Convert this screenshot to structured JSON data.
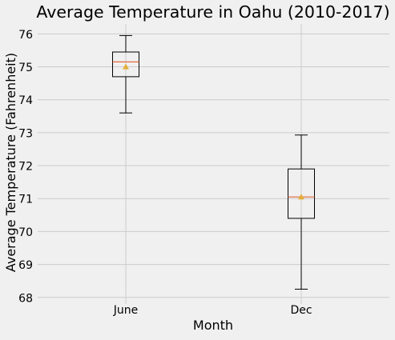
{
  "chart_data": {
    "type": "boxplot",
    "title": "Average Temperature in Oahu (2010-2017)",
    "xlabel": "Month",
    "ylabel": "Average Temperature (Fahrenheit)",
    "categories": [
      "June",
      "Dec"
    ],
    "boxes": [
      {
        "label": "June",
        "whisker_low": 73.6,
        "q1": 74.7,
        "median": 75.15,
        "q3": 75.45,
        "whisker_high": 75.95,
        "mean": 75.0
      },
      {
        "label": "Dec",
        "whisker_low": 68.25,
        "q1": 70.4,
        "median": 71.05,
        "q3": 71.9,
        "whisker_high": 72.93,
        "mean": 71.05
      }
    ],
    "y_ticks": [
      68,
      69,
      70,
      71,
      72,
      73,
      74,
      75,
      76
    ],
    "ylim": [
      67.8,
      76.3
    ],
    "grid": true,
    "colors": {
      "background": "#f0f0f0",
      "grid": "#cbcbcb",
      "box": "#000000",
      "median": "#e5683c",
      "mean": "#e5ae38",
      "text": "#000000"
    }
  }
}
